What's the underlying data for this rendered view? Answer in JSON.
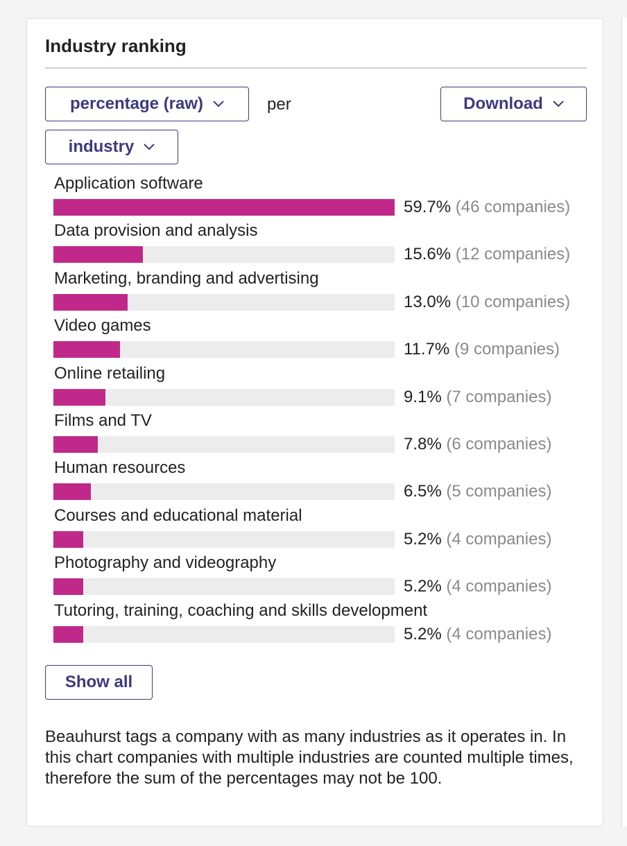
{
  "panel": {
    "title": "Industry ranking",
    "metric_dropdown": "percentage (raw)",
    "per_text": "per",
    "download_button": "Download",
    "group_dropdown": "industry",
    "show_all_button": "Show all",
    "footnote": "Beauhurst tags a company with as many industries as it operates in. In this chart companies with multiple industries are counted multiple times, therefore the sum of the percentages may not be 100."
  },
  "colors": {
    "bar": "#c0298a",
    "track": "#ececec",
    "accent": "#3d3a7f"
  },
  "icons": {
    "dropdown": "chevron-down-icon"
  },
  "chart_data": {
    "type": "bar",
    "orientation": "horizontal",
    "xlim": [
      0,
      59.7
    ],
    "categories": [
      "Application software",
      "Data provision and analysis",
      "Marketing, branding and advertising",
      "Video games",
      "Online retailing",
      "Films and TV",
      "Human resources",
      "Courses and educational material",
      "Photography and videography",
      "Tutoring, training, coaching and skills development"
    ],
    "values": [
      59.7,
      15.6,
      13.0,
      11.7,
      9.1,
      7.8,
      6.5,
      5.2,
      5.2,
      5.2
    ],
    "value_labels": [
      "59.7%",
      "15.6%",
      "13.0%",
      "11.7%",
      "9.1%",
      "7.8%",
      "6.5%",
      "5.2%",
      "5.2%",
      "5.2%"
    ],
    "count_labels": [
      "(46 companies)",
      "(12 companies)",
      "(10 companies)",
      "(9 companies)",
      "(7 companies)",
      "(6 companies)",
      "(5 companies)",
      "(4 companies)",
      "(4 companies)",
      "(4 companies)"
    ]
  }
}
